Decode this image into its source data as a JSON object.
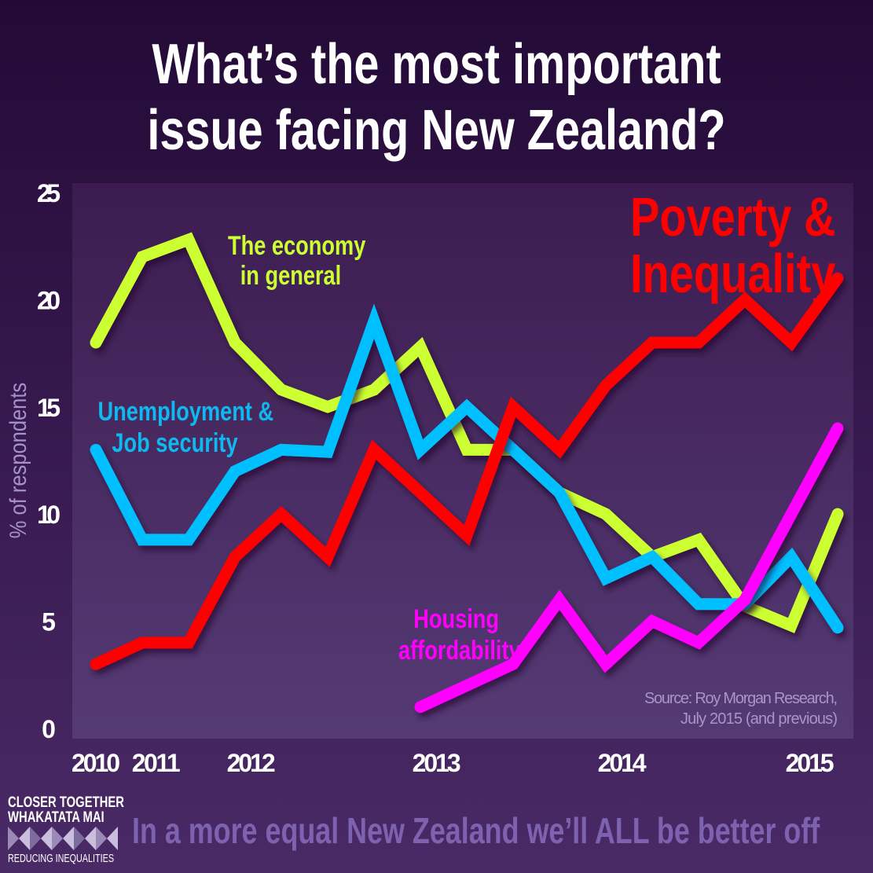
{
  "title_lines": [
    "What’s the most important",
    "issue facing New Zealand?"
  ],
  "footer": "In a more equal New Zealand we’ll ALL be better off",
  "logo": {
    "line1": "CLOSER TOGETHER",
    "line2": "WHAKATATA MAI",
    "line3": "REDUCING INEQUALITIES"
  },
  "chart_data": {
    "type": "line",
    "title": "What’s the most important issue facing New Zealand?",
    "ylabel": "% of respondents",
    "xlabel": "",
    "ylim": [
      0,
      25
    ],
    "yticks": [
      0,
      5,
      10,
      15,
      20,
      25
    ],
    "x": [
      0,
      1,
      2,
      3,
      4,
      5,
      6,
      7,
      8,
      9,
      10,
      11,
      12,
      13,
      14,
      15,
      16
    ],
    "xticks": [
      {
        "label": "2010",
        "at": 0
      },
      {
        "label": "2011",
        "at": 1.3
      },
      {
        "label": "2012",
        "at": 3.35
      },
      {
        "label": "2013",
        "at": 7.35
      },
      {
        "label": "2014",
        "at": 11.35
      },
      {
        "label": "2015",
        "at": 15.4
      }
    ],
    "grid": false,
    "source": [
      "Source: Roy Morgan Research,",
      "July 2015 (and previous)"
    ],
    "series": [
      {
        "name": "The economy in general",
        "label_lines": [
          "The economy",
          "in general"
        ],
        "color": "#ccff33",
        "values": [
          18,
          22,
          22.8,
          18,
          15.8,
          15,
          15.8,
          17.8,
          13,
          13,
          11,
          10,
          8,
          8.8,
          5.7,
          4.8,
          10
        ]
      },
      {
        "name": "Unemployment & Job security",
        "label_lines": [
          "Unemployment &",
          "Job security"
        ],
        "color": "#00bfff",
        "values": [
          13,
          8.8,
          8.8,
          12,
          13,
          12.9,
          19,
          13,
          15,
          13,
          11,
          7,
          8,
          5.8,
          5.8,
          8,
          4.7
        ]
      },
      {
        "name": "Poverty & Inequality",
        "label_lines": [
          "Poverty &",
          "Inequality"
        ],
        "color": "#ff0000",
        "values": [
          3,
          4,
          4,
          8,
          10,
          8,
          13,
          11,
          9,
          15,
          13,
          16,
          18,
          18,
          20,
          18,
          21
        ]
      },
      {
        "name": "Housing affordability",
        "label_lines": [
          "Housing",
          "affordability"
        ],
        "color": "#ff00ff",
        "values": [
          null,
          null,
          null,
          null,
          null,
          null,
          null,
          1,
          null,
          3,
          6,
          3,
          5,
          4,
          6,
          null,
          14
        ]
      }
    ]
  }
}
